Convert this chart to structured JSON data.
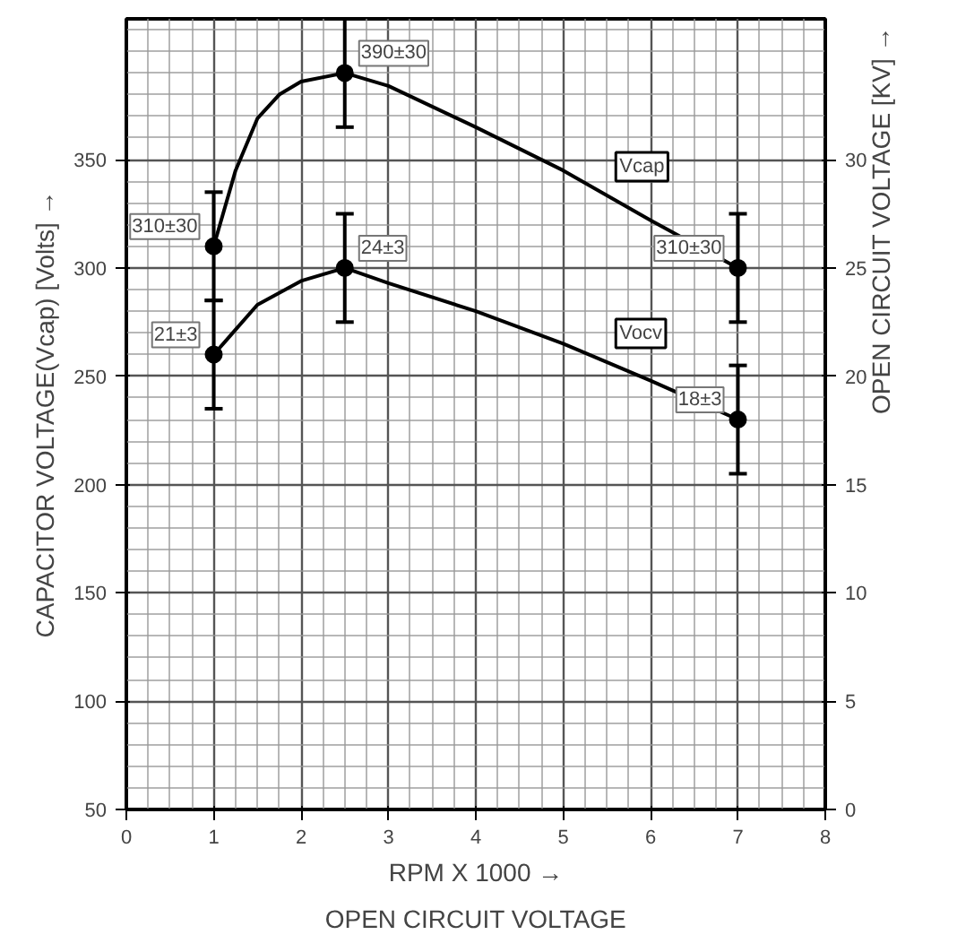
{
  "chart_data": {
    "type": "line",
    "title": "OPEN CIRCUIT VOLTAGE",
    "xlabel": "RPM X 1000 →",
    "ylabel": "CAPACITOR VOLTAGE(Vcap) [Volts] →",
    "y2label": "OPEN CIRCUIT VOLTAGE [KV] →",
    "xlim": [
      0,
      8
    ],
    "xticks": [
      0,
      1,
      2,
      3,
      4,
      5,
      6,
      7,
      8
    ],
    "ylim": [
      50,
      415
    ],
    "yticks": [
      50,
      100,
      150,
      200,
      250,
      300,
      350
    ],
    "y2lim": [
      0,
      36.5
    ],
    "y2ticks": [
      0,
      5,
      10,
      15,
      20,
      25,
      30
    ],
    "grid": true,
    "legend": false,
    "series": [
      {
        "name": "Vcap",
        "color": "#000000",
        "marker": "none",
        "x": [
          1,
          1.25,
          1.5,
          1.75,
          2,
          2.5,
          3,
          4,
          5,
          6,
          7
        ],
        "values": [
          310,
          345,
          369,
          380,
          386,
          390,
          384,
          365,
          345,
          322,
          300
        ]
      },
      {
        "type": "scatter",
        "color": "#000000",
        "marker": "circle",
        "x": [
          1,
          2.5,
          7
        ],
        "values": [
          310,
          390,
          300
        ],
        "errors": [
          25,
          25,
          25
        ],
        "value_labels": [
          "310±30",
          "390±30",
          "310±30"
        ]
      },
      {
        "name": "Vocv",
        "axis": "y2",
        "color": "#000000",
        "marker": "none",
        "x": [
          1,
          1.5,
          2,
          2.5,
          3,
          4,
          5,
          6,
          7
        ],
        "values": [
          21,
          23.3,
          24.4,
          25,
          24.3,
          23,
          21.5,
          19.8,
          18
        ]
      },
      {
        "type": "scatter",
        "axis": "y2",
        "color": "#000000",
        "marker": "circle",
        "x": [
          1,
          2.5,
          7
        ],
        "values": [
          21,
          25,
          18
        ],
        "errors": [
          2.5,
          2.5,
          2.5
        ],
        "value_labels": [
          "21±3",
          "24±3",
          "18±3"
        ]
      }
    ]
  }
}
